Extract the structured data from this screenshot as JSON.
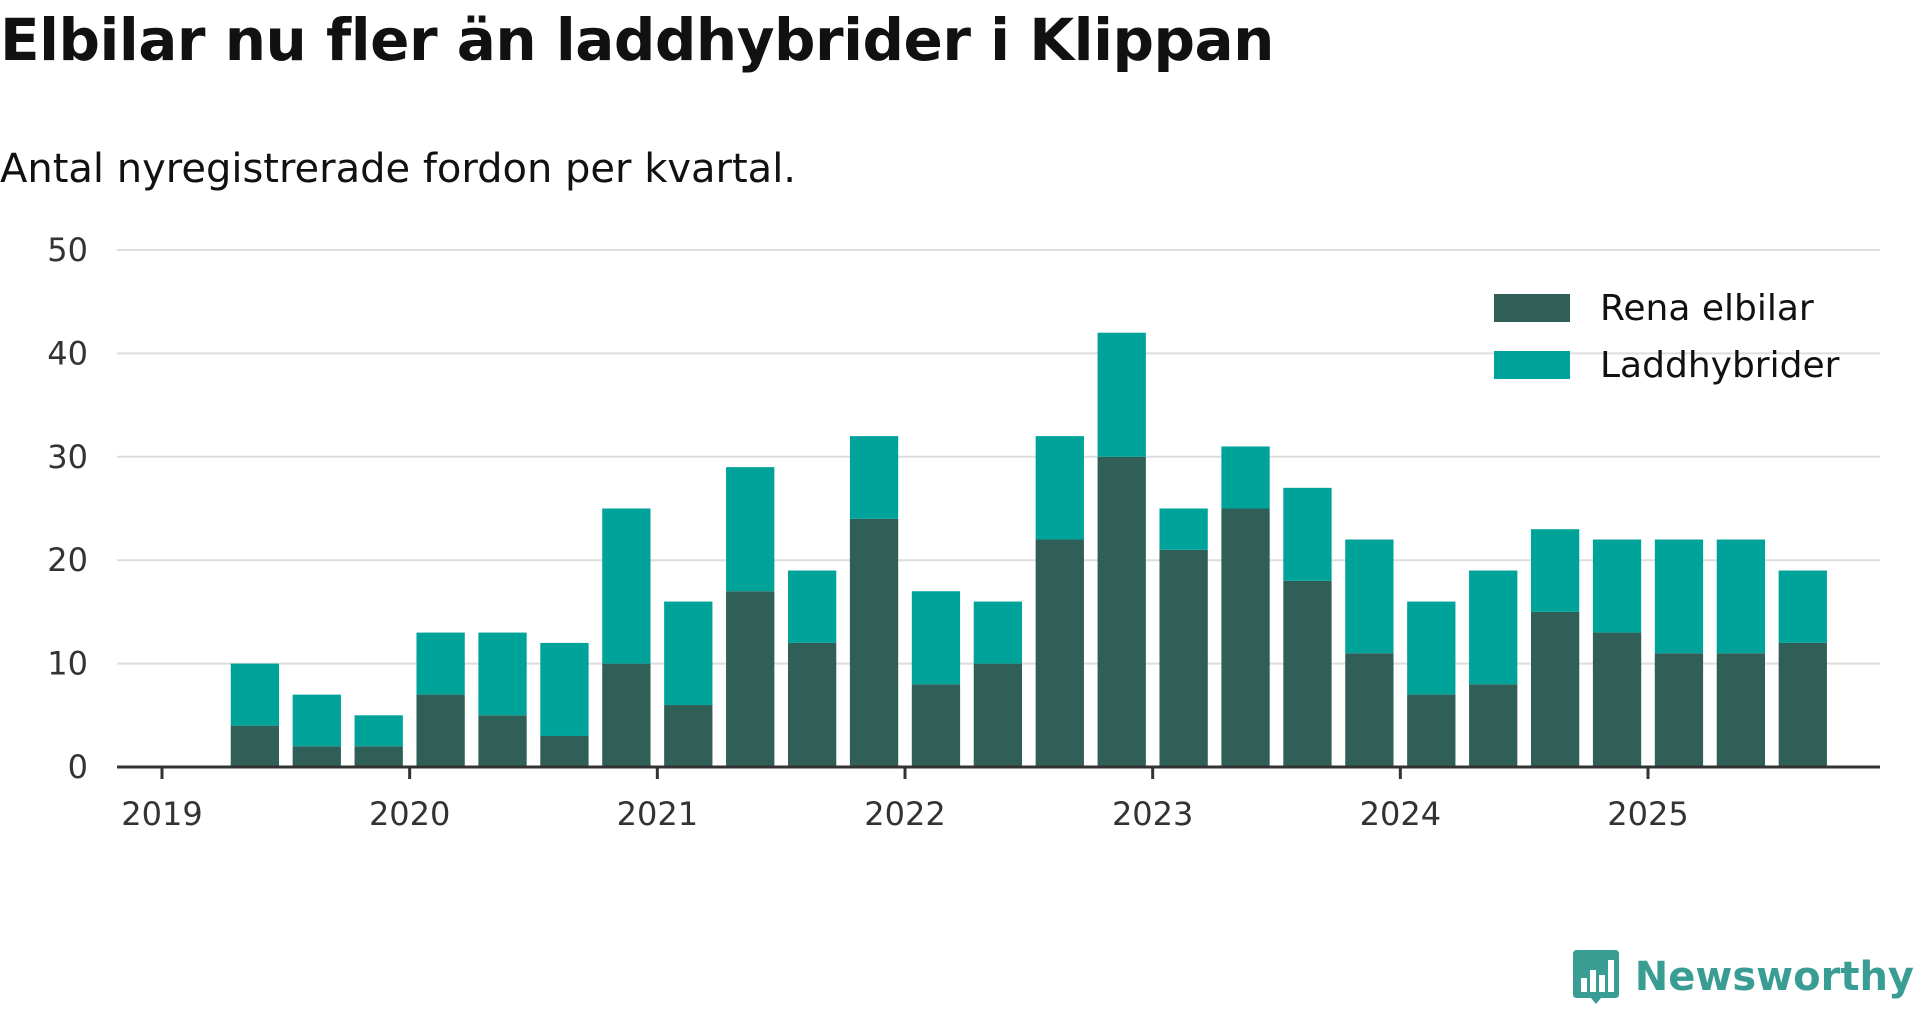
{
  "header": {
    "title": "Elbilar nu fler än laddhybrider i Klippan",
    "subtitle": "Antal nyregistrerade fordon per kvartal."
  },
  "brand": {
    "name": "Newsworthy",
    "color": "#3a9d94",
    "icon": "bar-chart-icon"
  },
  "chart_data": {
    "type": "bar",
    "stacked": true,
    "title": "Elbilar nu fler än laddhybrider i Klippan",
    "subtitle": "Antal nyregistrerade fordon per kvartal.",
    "xlabel": "",
    "ylabel": "",
    "ylim": [
      0,
      50
    ],
    "yticks": [
      0,
      10,
      20,
      30,
      40,
      50
    ],
    "grid": true,
    "legend_position": "top-right",
    "x_tick_labels": [
      "2019",
      "2020",
      "2021",
      "2022",
      "2023",
      "2024",
      "2025"
    ],
    "categories": [
      "2019 Q2",
      "2019 Q3",
      "2019 Q4",
      "2020 Q1",
      "2020 Q2",
      "2020 Q3",
      "2020 Q4",
      "2021 Q1",
      "2021 Q2",
      "2021 Q3",
      "2021 Q4",
      "2022 Q1",
      "2022 Q2",
      "2022 Q3",
      "2022 Q4",
      "2023 Q1",
      "2023 Q2",
      "2023 Q3",
      "2023 Q4",
      "2024 Q1",
      "2024 Q2",
      "2024 Q3",
      "2024 Q4",
      "2025 Q1",
      "2025 Q2",
      "2025 Q3"
    ],
    "series": [
      {
        "name": "Rena elbilar",
        "color": "#2f5f57",
        "values": [
          4,
          2,
          2,
          7,
          5,
          3,
          10,
          6,
          17,
          12,
          24,
          8,
          10,
          22,
          30,
          21,
          25,
          18,
          11,
          7,
          8,
          15,
          13,
          11,
          11,
          12
        ]
      },
      {
        "name": "Laddhybrider",
        "color": "#00a39a",
        "values": [
          6,
          5,
          3,
          6,
          8,
          9,
          15,
          10,
          12,
          7,
          8,
          9,
          6,
          10,
          12,
          4,
          6,
          9,
          11,
          9,
          11,
          8,
          9,
          11,
          11,
          7
        ]
      }
    ]
  }
}
